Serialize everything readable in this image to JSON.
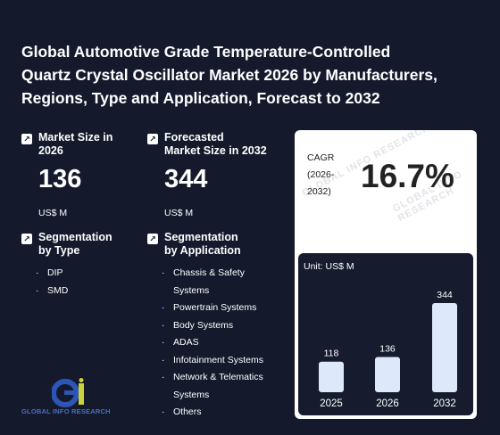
{
  "title": {
    "line1": "Global Automotive Grade Temperature-Controlled",
    "line2": "Quartz Crystal Oscillator Market 2026 by Manufacturers,",
    "line3": "Regions, Type and Application, Forecast to 2032"
  },
  "market_size": {
    "label_line1": "Market Size in",
    "label_line2": "2026",
    "value": "136",
    "unit": "US$ M",
    "icon": "arrow-up-right-icon"
  },
  "forecast": {
    "label_line1": "Forecasted",
    "label_line2": "Market Size in 2032",
    "value": "344",
    "unit": "US$ M",
    "icon": "arrow-up-right-icon"
  },
  "segmentation_type": {
    "label_line1": "Segmentation",
    "label_line2": "by Type",
    "items": [
      "DIP",
      "SMD"
    ]
  },
  "segmentation_application": {
    "label_line1": "Segmentation",
    "label_line2": "by Application",
    "items": [
      "Chassis & Safety Systems",
      "Powertrain Systems",
      "Body Systems",
      "ADAS",
      "Infotainment Systems",
      "Network & Telematics Systems",
      "Others"
    ]
  },
  "cagr": {
    "label_line1": "CAGR",
    "label_line2": "(2026-",
    "label_line3": "2032)",
    "value": "16.7%"
  },
  "watermark": "GLOBAL INFO RESEARCH",
  "logo": {
    "text": "GLOBAL INFO RESEARCH",
    "mark": "gi-logo-icon"
  },
  "colors": {
    "background": "#141a2c",
    "bar": "#dde9fb",
    "logo_blue": "#2d55b5",
    "logo_yellow": "#c9d23a"
  },
  "chart_data": {
    "type": "bar",
    "unit_label": "Unit: US$ M",
    "categories": [
      "2025",
      "2026",
      "2032"
    ],
    "values": [
      118,
      136,
      344
    ]
  }
}
